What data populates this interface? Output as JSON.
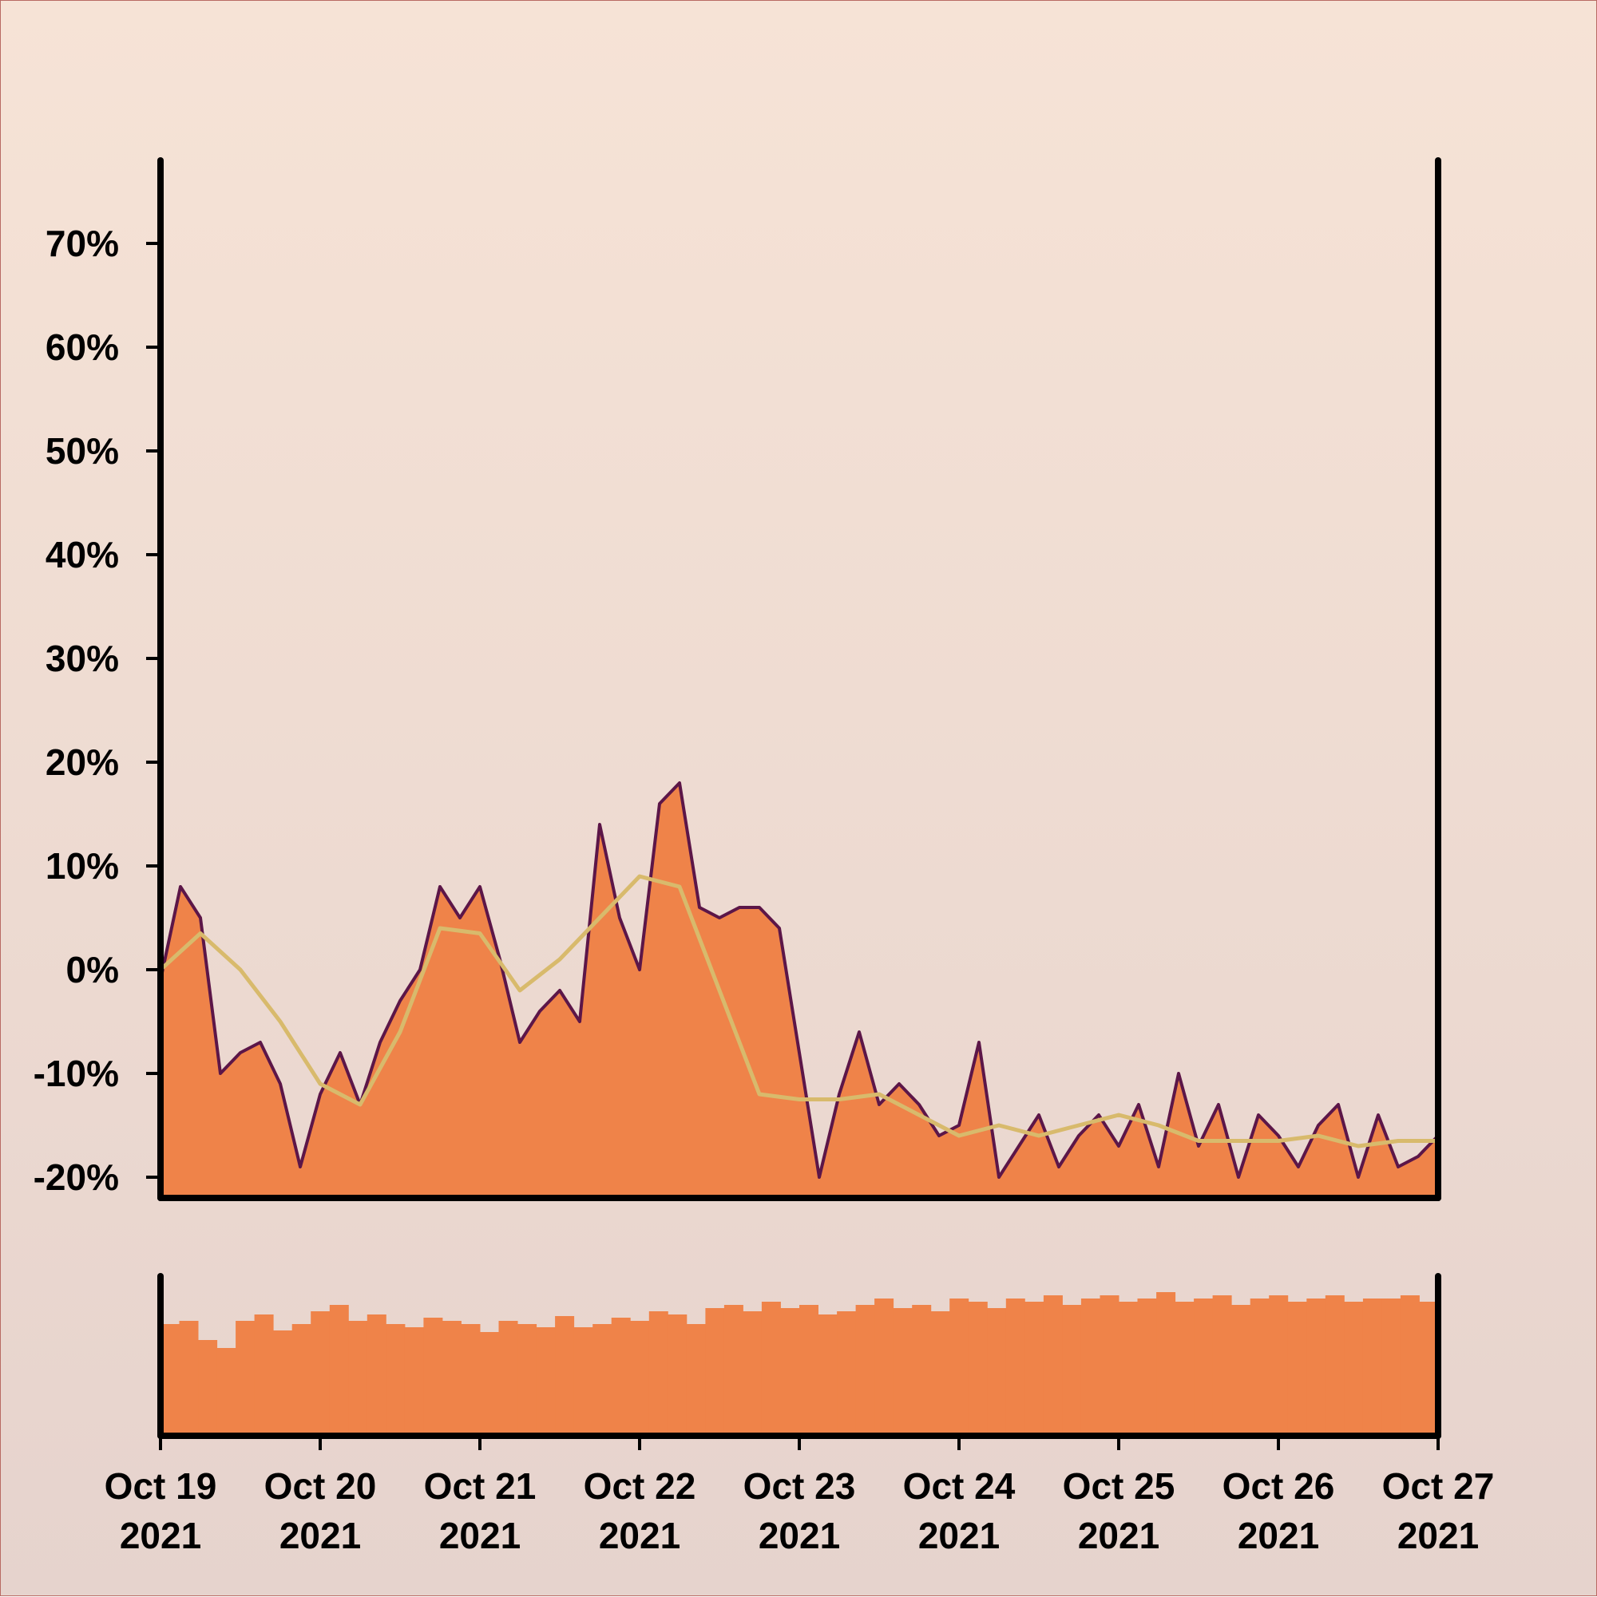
{
  "chart_data": [
    {
      "type": "area",
      "panel": "main",
      "x_unit": "date-time",
      "xlim": [
        "2021-10-19",
        "2021-10-27"
      ],
      "ylim": [
        -0.22,
        0.78
      ],
      "yticks": [
        -0.2,
        -0.1,
        0.0,
        0.1,
        0.2,
        0.3,
        0.4,
        0.5,
        0.6,
        0.7
      ],
      "ytick_labels": [
        "-20%",
        "-10%",
        "0%",
        "10%",
        "20%",
        "30%",
        "40%",
        "50%",
        "60%",
        "70%"
      ],
      "grid": false,
      "legend": "none",
      "series": [
        {
          "kind": "area-line",
          "color": "#5c1648",
          "fill": "#ef8349",
          "x": [
            "2021-10-19T00:00",
            "2021-10-19T03:00",
            "2021-10-19T06:00",
            "2021-10-19T09:00",
            "2021-10-19T12:00",
            "2021-10-19T15:00",
            "2021-10-19T18:00",
            "2021-10-19T21:00",
            "2021-10-20T00:00",
            "2021-10-20T03:00",
            "2021-10-20T06:00",
            "2021-10-20T09:00",
            "2021-10-20T12:00",
            "2021-10-20T15:00",
            "2021-10-20T18:00",
            "2021-10-20T21:00",
            "2021-10-21T00:00",
            "2021-10-21T03:00",
            "2021-10-21T06:00",
            "2021-10-21T09:00",
            "2021-10-21T12:00",
            "2021-10-21T15:00",
            "2021-10-21T18:00",
            "2021-10-21T21:00",
            "2021-10-22T00:00",
            "2021-10-22T03:00",
            "2021-10-22T06:00",
            "2021-10-22T09:00",
            "2021-10-22T12:00",
            "2021-10-22T15:00",
            "2021-10-22T18:00",
            "2021-10-22T21:00",
            "2021-10-23T00:00",
            "2021-10-23T03:00",
            "2021-10-23T06:00",
            "2021-10-23T09:00",
            "2021-10-23T12:00",
            "2021-10-23T15:00",
            "2021-10-23T18:00",
            "2021-10-23T21:00",
            "2021-10-24T00:00",
            "2021-10-24T03:00",
            "2021-10-24T06:00",
            "2021-10-24T09:00",
            "2021-10-24T12:00",
            "2021-10-24T15:00",
            "2021-10-24T18:00",
            "2021-10-24T21:00",
            "2021-10-25T00:00",
            "2021-10-25T03:00",
            "2021-10-25T06:00",
            "2021-10-25T09:00",
            "2021-10-25T12:00",
            "2021-10-25T15:00",
            "2021-10-25T18:00",
            "2021-10-25T21:00",
            "2021-10-26T00:00",
            "2021-10-26T03:00",
            "2021-10-26T06:00",
            "2021-10-26T09:00",
            "2021-10-26T12:00",
            "2021-10-26T15:00",
            "2021-10-26T18:00",
            "2021-10-26T21:00",
            "2021-10-27T00:00"
          ],
          "values": [
            -0.01,
            0.08,
            0.05,
            -0.1,
            -0.08,
            -0.07,
            -0.11,
            -0.19,
            -0.12,
            -0.08,
            -0.13,
            -0.07,
            -0.03,
            0.0,
            0.08,
            0.05,
            0.08,
            0.01,
            -0.07,
            -0.04,
            -0.02,
            -0.05,
            0.14,
            0.05,
            0.0,
            0.16,
            0.18,
            0.06,
            0.05,
            0.06,
            0.06,
            0.04,
            -0.08,
            -0.2,
            -0.12,
            -0.06,
            -0.13,
            -0.11,
            -0.13,
            -0.16,
            -0.15,
            -0.07,
            -0.2,
            -0.17,
            -0.14,
            -0.19,
            -0.16,
            -0.14,
            -0.17,
            -0.13,
            -0.19,
            -0.1,
            -0.17,
            -0.13,
            -0.2,
            -0.14,
            -0.16,
            -0.19,
            -0.15,
            -0.13,
            -0.2,
            -0.14,
            -0.19,
            -0.18,
            -0.16
          ]
        },
        {
          "kind": "line",
          "color": "#d8ba6c",
          "x": [
            "2021-10-19T00:00",
            "2021-10-19T06:00",
            "2021-10-19T12:00",
            "2021-10-19T18:00",
            "2021-10-20T00:00",
            "2021-10-20T06:00",
            "2021-10-20T12:00",
            "2021-10-20T18:00",
            "2021-10-21T00:00",
            "2021-10-21T06:00",
            "2021-10-21T12:00",
            "2021-10-21T18:00",
            "2021-10-22T00:00",
            "2021-10-22T06:00",
            "2021-10-22T12:00",
            "2021-10-22T18:00",
            "2021-10-23T00:00",
            "2021-10-23T06:00",
            "2021-10-23T12:00",
            "2021-10-23T18:00",
            "2021-10-24T00:00",
            "2021-10-24T06:00",
            "2021-10-24T12:00",
            "2021-10-24T18:00",
            "2021-10-25T00:00",
            "2021-10-25T06:00",
            "2021-10-25T12:00",
            "2021-10-25T18:00",
            "2021-10-26T00:00",
            "2021-10-26T06:00",
            "2021-10-26T12:00",
            "2021-10-26T18:00",
            "2021-10-27T00:00"
          ],
          "values": [
            0.0,
            0.035,
            0.0,
            -0.05,
            -0.11,
            -0.13,
            -0.06,
            0.04,
            0.035,
            -0.02,
            0.01,
            0.05,
            0.09,
            0.08,
            -0.02,
            -0.12,
            -0.125,
            -0.125,
            -0.12,
            -0.14,
            -0.16,
            -0.15,
            -0.16,
            -0.15,
            -0.14,
            -0.15,
            -0.165,
            -0.165,
            -0.165,
            -0.16,
            -0.17,
            -0.165,
            -0.165
          ]
        }
      ]
    },
    {
      "type": "bar",
      "panel": "volume",
      "xlim": [
        "2021-10-19",
        "2021-10-27"
      ],
      "x_ticks": [
        "Oct 19\n2021",
        "Oct 20\n2021",
        "Oct 21\n2021",
        "Oct 22\n2021",
        "Oct 23\n2021",
        "Oct 24\n2021",
        "Oct 25\n2021",
        "Oct 26\n2021",
        "Oct 27\n2021"
      ],
      "x_tick_lines": [
        [
          "Oct 19",
          "2021"
        ],
        [
          "Oct 20",
          "2021"
        ],
        [
          "Oct 21",
          "2021"
        ],
        [
          "Oct 22",
          "2021"
        ],
        [
          "Oct 23",
          "2021"
        ],
        [
          "Oct 24",
          "2021"
        ],
        [
          "Oct 25",
          "2021"
        ],
        [
          "Oct 26",
          "2021"
        ],
        [
          "Oct 27",
          "2021"
        ]
      ],
      "y_visible": false,
      "color": "#ef8349",
      "values_relative": [
        0.7,
        0.72,
        0.6,
        0.55,
        0.72,
        0.76,
        0.66,
        0.7,
        0.78,
        0.82,
        0.72,
        0.76,
        0.7,
        0.68,
        0.74,
        0.72,
        0.7,
        0.65,
        0.72,
        0.7,
        0.68,
        0.75,
        0.68,
        0.7,
        0.74,
        0.72,
        0.78,
        0.76,
        0.7,
        0.8,
        0.82,
        0.78,
        0.84,
        0.8,
        0.82,
        0.76,
        0.78,
        0.82,
        0.86,
        0.8,
        0.82,
        0.78,
        0.86,
        0.84,
        0.8,
        0.86,
        0.84,
        0.88,
        0.82,
        0.86,
        0.88,
        0.84,
        0.86,
        0.9,
        0.84,
        0.86,
        0.88,
        0.82,
        0.86,
        0.88,
        0.84,
        0.86,
        0.88,
        0.84,
        0.86,
        0.86,
        0.88,
        0.84
      ]
    }
  ]
}
